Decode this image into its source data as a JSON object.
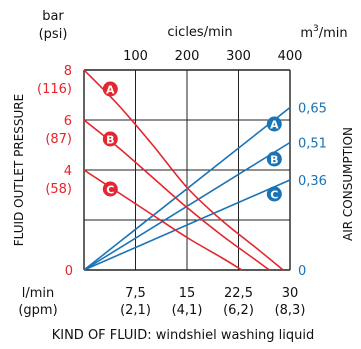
{
  "chart_data": {
    "type": "line",
    "axes": {
      "left": {
        "unit_top": "bar",
        "unit_bottom": "(psi)",
        "label": "FLUID OUTLET PRESSURE",
        "range": [
          0,
          8
        ],
        "ticks": [
          {
            "value": 8,
            "main": "8",
            "sub": "(116)"
          },
          {
            "value": 6,
            "main": "6",
            "sub": "(87)"
          },
          {
            "value": 4,
            "main": "4",
            "sub": "(58)"
          },
          {
            "value": 0,
            "main": "0",
            "sub": ""
          }
        ],
        "color": "#e3262f"
      },
      "right": {
        "unit": "m3/min",
        "unit_base": "m",
        "unit_exp": "3",
        "unit_tail": "/min",
        "label": "AIR CONSUMPTION",
        "range": [
          0,
          0.8
        ],
        "ticks": [
          {
            "value": 0.65,
            "main": "0,65"
          },
          {
            "value": 0.51,
            "main": "0,51"
          },
          {
            "value": 0.36,
            "main": "0,36"
          },
          {
            "value": 0,
            "main": "0"
          }
        ],
        "color": "#1a73b5"
      },
      "top": {
        "label": "cicles/min",
        "range": [
          0,
          400
        ],
        "ticks": [
          {
            "value": 100,
            "main": "100"
          },
          {
            "value": 200,
            "main": "200"
          },
          {
            "value": 300,
            "main": "300"
          },
          {
            "value": 400,
            "main": "400"
          }
        ]
      },
      "bottom": {
        "unit_top": "l/min",
        "unit_bottom": "(gpm)",
        "range": [
          0,
          30
        ],
        "ticks": [
          {
            "value": 7.5,
            "main": "7,5",
            "sub": "(2,1)"
          },
          {
            "value": 15,
            "main": "15",
            "sub": "(4,1)"
          },
          {
            "value": 22.5,
            "main": "22,5",
            "sub": "(6,2)"
          },
          {
            "value": 30,
            "main": "30",
            "sub": "(8,3)"
          }
        ]
      }
    },
    "grid": true,
    "footer": "KIND OF FLUID: windshiel washing liquid",
    "pressure_series": [
      {
        "name": "A",
        "points": [
          [
            0,
            8
          ],
          [
            5,
            6.6
          ],
          [
            10,
            5.0
          ],
          [
            15,
            3.3
          ],
          [
            20,
            2.0
          ],
          [
            25,
            0.9
          ],
          [
            29,
            0
          ]
        ]
      },
      {
        "name": "B",
        "points": [
          [
            0,
            6
          ],
          [
            5,
            4.9
          ],
          [
            10,
            3.7
          ],
          [
            15,
            2.5
          ],
          [
            20,
            1.4
          ],
          [
            25,
            0.4
          ],
          [
            27,
            0
          ]
        ]
      },
      {
        "name": "C",
        "points": [
          [
            0,
            4
          ],
          [
            5,
            3.1
          ],
          [
            10,
            2.2
          ],
          [
            15,
            1.3
          ],
          [
            20,
            0.5
          ],
          [
            23,
            0
          ]
        ]
      }
    ],
    "air_series": [
      {
        "name": "A",
        "points": [
          [
            0,
            0
          ],
          [
            30,
            0.65
          ]
        ]
      },
      {
        "name": "B",
        "points": [
          [
            0,
            0
          ],
          [
            30,
            0.51
          ]
        ]
      },
      {
        "name": "C",
        "points": [
          [
            0,
            0
          ],
          [
            30,
            0.36
          ]
        ]
      }
    ],
    "label_positions": {
      "pressure": [
        [
          1.5,
          7.4
        ],
        [
          1.5,
          5.4
        ],
        [
          1.5,
          3.4
        ]
      ],
      "air": [
        [
          28.3,
          0.6
        ],
        [
          28.3,
          0.46
        ],
        [
          28.3,
          0.32
        ]
      ]
    }
  }
}
